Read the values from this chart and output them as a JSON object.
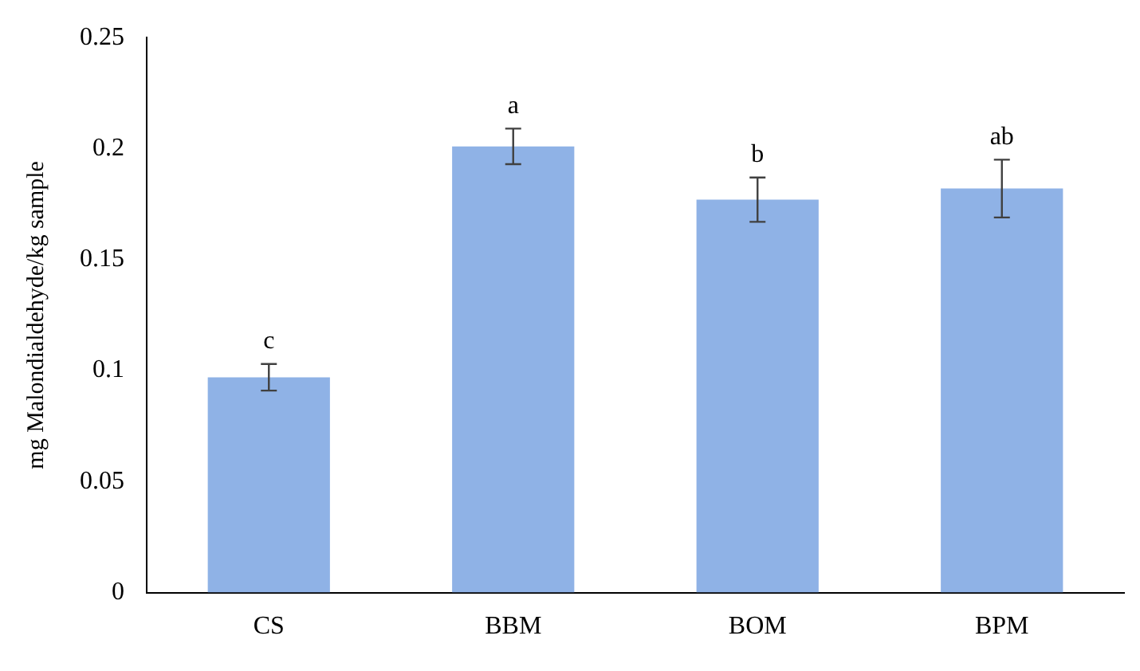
{
  "chart_data": {
    "type": "bar",
    "ylabel": "mg Malondialdehyde/kg sample",
    "categories": [
      "CS",
      "BBM",
      "BOM",
      "BPM"
    ],
    "values": [
      0.097,
      0.201,
      0.177,
      0.182
    ],
    "errors": [
      0.006,
      0.008,
      0.01,
      0.013
    ],
    "color": "#8fb2e6",
    "ylim": [
      0,
      0.25
    ],
    "yticks": [
      0,
      0.05,
      0.1,
      0.15,
      0.2,
      0.25
    ],
    "grid": false,
    "annotations": [
      {
        "text": "c",
        "x": "CS",
        "y": 0.103
      },
      {
        "text": "a",
        "x": "BBM",
        "y": 0.209
      },
      {
        "text": "b",
        "x": "BOM",
        "y": 0.187
      },
      {
        "text": "ab",
        "x": "BPM",
        "y": 0.195
      }
    ]
  }
}
